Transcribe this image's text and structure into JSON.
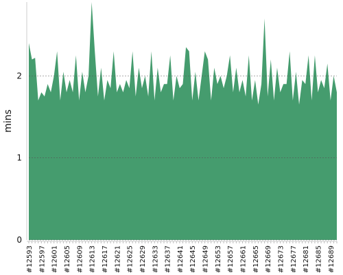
{
  "chart_data": {
    "type": "area",
    "y_label": "mins",
    "color": "#459c6e",
    "grid": true,
    "categories": [
      "#12593",
      null,
      null,
      null,
      "#12597",
      null,
      null,
      null,
      "#12601",
      null,
      null,
      null,
      "#12605",
      null,
      null,
      null,
      "#12609",
      null,
      null,
      null,
      "#12613",
      null,
      null,
      null,
      "#12617",
      null,
      null,
      null,
      "#12621",
      null,
      null,
      null,
      "#12625",
      null,
      null,
      null,
      "#12629",
      null,
      null,
      null,
      "#12633",
      null,
      null,
      null,
      "#12637",
      null,
      null,
      null,
      "#12641",
      null,
      null,
      null,
      "#12645",
      null,
      null,
      null,
      "#12649",
      null,
      null,
      null,
      "#12653",
      null,
      null,
      null,
      "#12657",
      null,
      null,
      null,
      "#12661",
      null,
      null,
      null,
      "#12665",
      null,
      null,
      null,
      "#12669",
      null,
      null,
      null,
      "#12673",
      null,
      null,
      null,
      "#12677",
      null,
      null,
      null,
      "#12681",
      null,
      null,
      null,
      "#12685",
      null,
      null,
      null,
      "#12689",
      null,
      null
    ],
    "values": [
      2.4,
      2.2,
      2.22,
      1.7,
      1.8,
      1.75,
      1.9,
      1.8,
      2.0,
      2.3,
      1.7,
      2.05,
      1.8,
      1.95,
      1.8,
      2.25,
      1.7,
      2.05,
      1.8,
      2.0,
      2.9,
      2.3,
      1.75,
      2.1,
      1.7,
      1.95,
      1.85,
      2.3,
      1.8,
      1.9,
      1.8,
      1.95,
      1.85,
      2.3,
      1.75,
      2.1,
      1.85,
      2.0,
      1.75,
      2.3,
      1.7,
      2.1,
      1.8,
      1.9,
      1.9,
      2.25,
      1.7,
      2.0,
      1.85,
      1.9,
      2.35,
      2.3,
      1.7,
      2.05,
      1.7,
      2.0,
      2.3,
      2.2,
      1.7,
      2.1,
      1.9,
      2.0,
      1.85,
      2.0,
      2.25,
      1.8,
      2.1,
      1.8,
      1.95,
      1.75,
      2.25,
      1.7,
      1.95,
      1.65,
      1.9,
      2.7,
      1.75,
      2.2,
      1.7,
      2.1,
      1.8,
      1.9,
      1.9,
      2.3,
      1.7,
      2.05,
      1.65,
      1.95,
      1.9,
      2.25,
      1.7,
      2.25,
      1.8,
      1.95,
      1.85,
      2.15,
      1.7,
      2.0,
      1.8
    ],
    "ylim": [
      0,
      2.9
    ],
    "yticks": [
      0,
      1,
      2
    ]
  }
}
